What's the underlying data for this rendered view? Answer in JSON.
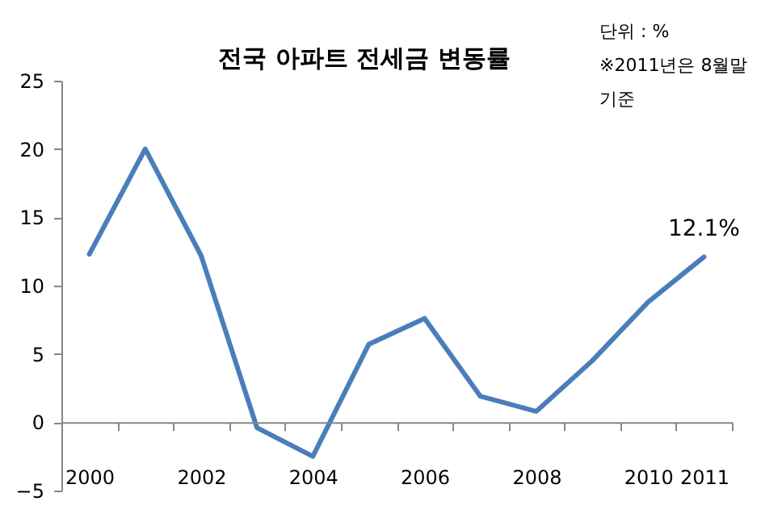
{
  "chart_data": {
    "type": "line",
    "title": "전국 아파트 전세금 변동률",
    "categories": [
      "2000",
      null,
      "2002",
      null,
      "2004",
      null,
      "2006",
      null,
      "2008",
      null,
      "2010",
      "2011"
    ],
    "series": [
      {
        "color": "#4a7ebb",
        "values": [
          12.3,
          20.0,
          12.2,
          -0.4,
          -2.5,
          5.7,
          7.6,
          1.9,
          0.8,
          4.5,
          8.8,
          12.1
        ]
      }
    ],
    "ylim": [
      -5,
      25
    ],
    "yticks": [
      -5,
      0,
      5,
      10,
      15,
      20,
      25
    ],
    "annotations": [
      "단위 : %",
      "※2011년은 8월말 기준",
      {
        "text": "12.1%",
        "x": "2011",
        "y": 12.1
      }
    ]
  }
}
